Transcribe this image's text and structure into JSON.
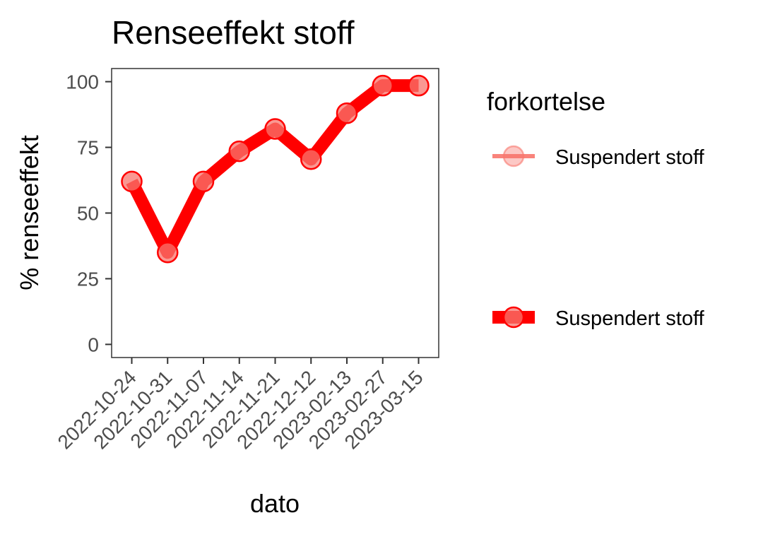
{
  "chart_data": {
    "type": "line",
    "title": "Renseeffekt stoff",
    "xlabel": "dato",
    "ylabel": "% renseeffekt",
    "categories": [
      "2022-10-24",
      "2022-10-31",
      "2022-11-07",
      "2022-11-14",
      "2022-11-21",
      "2022-12-12",
      "2023-02-13",
      "2023-02-27",
      "2023-03-15"
    ],
    "series": [
      {
        "name": "Suspendert stoff",
        "values": [
          62,
          35,
          62,
          73.5,
          82,
          70.5,
          88,
          98.5,
          98.5
        ]
      }
    ],
    "ylim": [
      -5,
      105
    ],
    "yticks": [
      0,
      25,
      50,
      75,
      100
    ],
    "grid": false,
    "legend": {
      "title": "forkortelse",
      "position": "right",
      "entries": [
        "Suspendert stoff",
        "Suspendert stoff"
      ]
    },
    "colors": {
      "line": "#ff0000",
      "point": "#f8766d",
      "point_stroke": "#ff0000",
      "legend_line_light": "#f8766d"
    }
  }
}
